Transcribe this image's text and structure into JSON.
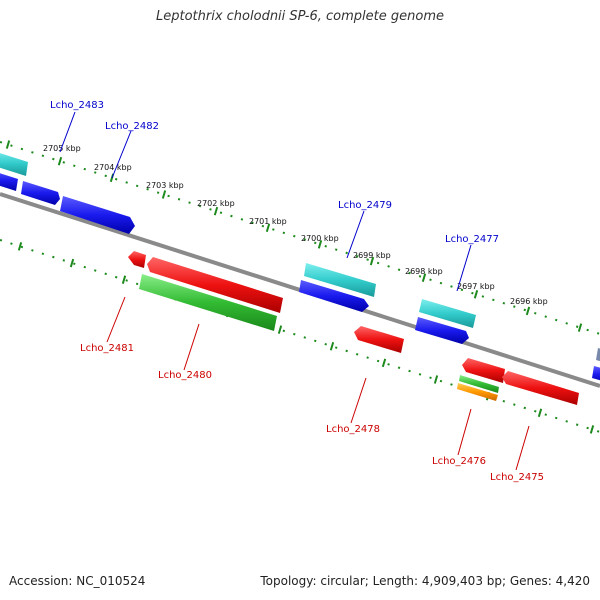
{
  "header": {
    "title": "Leptothrix cholodnii SP-6, complete genome"
  },
  "footer": {
    "accession": "Accession: NC_010524",
    "topology": "Topology: circular; Length: 4,909,403 bp; Genes: 4,420"
  },
  "colors": {
    "backbone": "#8a8a8a",
    "tick_marks": "#1d8a1d",
    "label_forward": "#0000cc",
    "label_reverse": "#cc0000",
    "cyan_gene": "#33cccc",
    "blue_gene": "#1a1aee",
    "red_gene": "#ee1111",
    "green_gene": "#33bb33",
    "orange_gene": "#ff9900"
  },
  "kbp_labels": [
    "2705 kbp",
    "2704 kbp",
    "2703 kbp",
    "2702 kbp",
    "2701 kbp",
    "2700 kbp",
    "2699 kbp",
    "2698 kbp",
    "2697 kbp",
    "2696 kbp"
  ],
  "gene_labels_top": [
    "Lcho_2483",
    "Lcho_2482",
    "Lcho_2479",
    "Lcho_2477"
  ],
  "gene_labels_bottom": [
    "Lcho_2481",
    "Lcho_2480",
    "Lcho_2478",
    "Lcho_2476",
    "Lcho_2475"
  ]
}
